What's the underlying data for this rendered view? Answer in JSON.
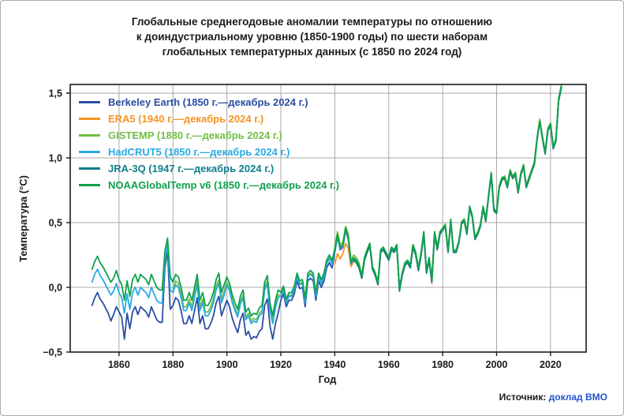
{
  "header": {
    "title_lines": [
      "Глобальные среднегодовые аномалии температуры по отношению",
      "к доиндустриальному уровню (1850-1900 годы) по шести наборам",
      "глобальных температурных данных (с 1850 по 2024 год)"
    ]
  },
  "source": {
    "prefix": "Источник: ",
    "link": "доклад ВМО"
  },
  "chart_data": {
    "type": "line",
    "title": "Глобальные среднегодовые аномалии температуры по отношению к доиндустриальному уровню (1850-1900 годы) по шести наборам глобальных температурных данных (с 1850 по 2024 год)",
    "xlabel": "Год",
    "ylabel": "Температура (°C)",
    "xlim": [
      1841.9,
      2033.2
    ],
    "ylim": [
      -0.5,
      1.567
    ],
    "xticks": [
      1860,
      1880,
      1900,
      1920,
      1940,
      1960,
      1980,
      2000,
      2020
    ],
    "xtick_labels": [
      "1860",
      "1880",
      "1900",
      "1920",
      "1940",
      "1960",
      "1980",
      "2000",
      "2020"
    ],
    "yticks": [
      -0.5,
      0.0,
      0.5,
      1.0,
      1.5
    ],
    "ytick_labels": [
      "−0,5",
      "0,0",
      "0,5",
      "1,0",
      "1,5"
    ],
    "grid": true,
    "legend_position": "upper left inside",
    "colors": {
      "grid": "#a8a8a8",
      "axis": "#1a1a1a"
    },
    "series": [
      {
        "id": "berkeley-earth",
        "name": "Berkeley Earth",
        "label": "Berkeley Earth (1850 г.—декабрь 2024 г.)",
        "color": "#2b4ea3",
        "start_year": 1850,
        "end_year": 2024,
        "values": [
          -0.14,
          -0.08,
          -0.04,
          -0.09,
          -0.12,
          -0.16,
          -0.2,
          -0.26,
          -0.21,
          -0.15,
          -0.19,
          -0.23,
          -0.4,
          -0.2,
          -0.32,
          -0.19,
          -0.15,
          -0.21,
          -0.15,
          -0.17,
          -0.19,
          -0.23,
          -0.15,
          -0.2,
          -0.25,
          -0.27,
          -0.27,
          0.15,
          0.28,
          -0.17,
          -0.14,
          -0.08,
          -0.1,
          -0.18,
          -0.28,
          -0.28,
          -0.22,
          -0.28,
          -0.18,
          -0.08,
          -0.28,
          -0.22,
          -0.32,
          -0.32,
          -0.28,
          -0.22,
          -0.12,
          -0.07,
          -0.22,
          -0.16,
          -0.1,
          -0.15,
          -0.24,
          -0.3,
          -0.35,
          -0.25,
          -0.2,
          -0.37,
          -0.34,
          -0.4,
          -0.38,
          -0.39,
          -0.34,
          -0.32,
          -0.14,
          -0.09,
          -0.3,
          -0.4,
          -0.28,
          -0.2,
          -0.1,
          -0.05,
          -0.15,
          -0.1,
          -0.1,
          -0.05,
          0.05,
          -0.01,
          0.0,
          -0.15,
          0.05,
          0.07,
          0.05,
          -0.1,
          0.05,
          0.0,
          0.05,
          0.15,
          0.19,
          0.15,
          0.27,
          0.39,
          0.29,
          0.31,
          0.44,
          0.37,
          0.17,
          0.21,
          0.19,
          0.15,
          0.07,
          0.21,
          0.27,
          0.32,
          0.14,
          0.09,
          0.02,
          0.27,
          0.29,
          0.25,
          0.21,
          0.29,
          0.27,
          0.31,
          -0.03,
          0.09,
          0.17,
          0.19,
          0.15,
          0.31,
          0.25,
          0.13,
          0.25,
          0.41,
          0.11,
          0.21,
          0.04,
          0.41,
          0.29,
          0.41,
          0.44,
          0.47,
          0.27,
          0.51,
          0.27,
          0.27,
          0.34,
          0.49,
          0.51,
          0.41,
          0.61,
          0.54,
          0.37,
          0.41,
          0.47,
          0.61,
          0.51,
          0.69,
          0.87,
          0.59,
          0.57,
          0.77,
          0.83,
          0.84,
          0.77,
          0.89,
          0.84,
          0.87,
          0.73,
          0.87,
          0.93,
          0.77,
          0.83,
          0.89,
          0.95,
          1.14,
          1.29,
          1.15,
          1.03,
          1.21,
          1.25,
          1.07,
          1.13,
          1.44,
          1.54
        ]
      },
      {
        "id": "era5",
        "name": "ERA5",
        "label": "ERA5 (1940 г.—декабрь 2024 г.)",
        "color": "#f79421",
        "start_year": 1940,
        "end_year": 2024,
        "values": [
          0.18,
          0.26,
          0.22,
          0.26,
          0.34,
          0.3,
          0.16,
          0.2,
          0.19,
          0.15,
          0.07,
          0.21,
          0.27,
          0.32,
          0.14,
          0.09,
          0.02,
          0.27,
          0.29,
          0.25,
          0.21,
          0.29,
          0.27,
          0.31,
          -0.01,
          0.09,
          0.17,
          0.19,
          0.15,
          0.31,
          0.25,
          0.13,
          0.25,
          0.41,
          0.11,
          0.21,
          0.03,
          0.41,
          0.29,
          0.41,
          0.44,
          0.47,
          0.27,
          0.51,
          0.27,
          0.27,
          0.34,
          0.49,
          0.51,
          0.41,
          0.61,
          0.54,
          0.37,
          0.41,
          0.47,
          0.61,
          0.51,
          0.69,
          0.87,
          0.59,
          0.57,
          0.77,
          0.83,
          0.84,
          0.77,
          0.89,
          0.84,
          0.87,
          0.73,
          0.87,
          0.93,
          0.77,
          0.83,
          0.89,
          0.95,
          1.14,
          1.3,
          1.15,
          1.03,
          1.21,
          1.27,
          1.07,
          1.13,
          1.45,
          1.56
        ]
      },
      {
        "id": "gistemp",
        "name": "GISTEMP",
        "label": "GISTEMP (1880 г.—декабрь 2024 г.)",
        "color": "#73be45",
        "start_year": 1880,
        "end_year": 2024,
        "values": [
          -0.01,
          0.05,
          0.03,
          -0.05,
          -0.15,
          -0.15,
          -0.09,
          -0.15,
          -0.05,
          0.05,
          -0.15,
          -0.09,
          -0.19,
          -0.19,
          -0.15,
          -0.09,
          0.01,
          0.06,
          -0.09,
          -0.03,
          0.04,
          -0.01,
          -0.1,
          -0.16,
          -0.21,
          -0.11,
          -0.06,
          -0.23,
          -0.2,
          -0.26,
          -0.24,
          -0.25,
          -0.2,
          -0.18,
          0.0,
          0.05,
          -0.16,
          -0.26,
          -0.14,
          -0.06,
          -0.06,
          -0.01,
          -0.11,
          -0.06,
          -0.06,
          -0.01,
          0.09,
          0.03,
          0.04,
          -0.11,
          0.09,
          0.11,
          0.09,
          -0.06,
          0.09,
          0.04,
          0.09,
          0.19,
          0.23,
          0.19,
          0.31,
          0.43,
          0.33,
          0.35,
          0.47,
          0.41,
          0.21,
          0.25,
          0.23,
          0.19,
          0.09,
          0.23,
          0.29,
          0.34,
          0.16,
          0.11,
          0.04,
          0.29,
          0.31,
          0.27,
          0.23,
          0.31,
          0.29,
          0.33,
          -0.01,
          0.11,
          0.19,
          0.21,
          0.17,
          0.33,
          0.27,
          0.15,
          0.27,
          0.43,
          0.13,
          0.23,
          0.06,
          0.43,
          0.31,
          0.43,
          0.46,
          0.49,
          0.29,
          0.53,
          0.29,
          0.29,
          0.36,
          0.51,
          0.53,
          0.43,
          0.63,
          0.56,
          0.39,
          0.43,
          0.49,
          0.63,
          0.53,
          0.71,
          0.89,
          0.61,
          0.59,
          0.79,
          0.85,
          0.86,
          0.79,
          0.91,
          0.86,
          0.89,
          0.75,
          0.89,
          0.95,
          0.79,
          0.85,
          0.91,
          0.97,
          1.16,
          1.3,
          1.17,
          1.05,
          1.23,
          1.27,
          1.09,
          1.15,
          1.46,
          1.56
        ]
      },
      {
        "id": "hadcrut5",
        "name": "HadCRUT5",
        "label": "HadCRUT5 (1850 г.—декабрь 2024 г.)",
        "color": "#29abe2",
        "start_year": 1850,
        "end_year": 2024,
        "values": [
          0.04,
          0.1,
          0.14,
          0.09,
          0.06,
          0.02,
          -0.02,
          -0.06,
          -0.03,
          0.03,
          -0.04,
          -0.08,
          -0.2,
          -0.05,
          -0.17,
          -0.04,
          0.0,
          -0.06,
          0.0,
          -0.02,
          -0.04,
          -0.08,
          0.0,
          -0.05,
          -0.1,
          -0.12,
          -0.12,
          0.2,
          0.33,
          -0.02,
          -0.04,
          0.02,
          0.0,
          -0.08,
          -0.18,
          -0.18,
          -0.12,
          -0.18,
          -0.08,
          0.02,
          -0.18,
          -0.12,
          -0.22,
          -0.22,
          -0.18,
          -0.12,
          -0.02,
          0.03,
          -0.12,
          -0.06,
          0.02,
          -0.03,
          -0.12,
          -0.18,
          -0.23,
          -0.13,
          -0.08,
          -0.25,
          -0.22,
          -0.28,
          -0.26,
          -0.27,
          -0.22,
          -0.2,
          -0.02,
          0.03,
          -0.18,
          -0.28,
          -0.16,
          -0.08,
          -0.07,
          -0.02,
          -0.12,
          -0.07,
          -0.07,
          -0.02,
          0.08,
          0.02,
          0.03,
          -0.12,
          0.08,
          0.1,
          0.08,
          -0.07,
          0.08,
          0.03,
          0.08,
          0.18,
          0.22,
          0.18,
          0.28,
          0.4,
          0.3,
          0.32,
          0.45,
          0.38,
          0.18,
          0.22,
          0.2,
          0.16,
          0.08,
          0.22,
          0.28,
          0.33,
          0.15,
          0.1,
          0.03,
          0.28,
          0.3,
          0.26,
          0.22,
          0.3,
          0.28,
          0.32,
          -0.02,
          0.1,
          0.18,
          0.2,
          0.16,
          0.32,
          0.26,
          0.14,
          0.26,
          0.42,
          0.12,
          0.22,
          0.05,
          0.42,
          0.3,
          0.42,
          0.45,
          0.48,
          0.28,
          0.52,
          0.28,
          0.28,
          0.35,
          0.5,
          0.52,
          0.42,
          0.62,
          0.55,
          0.38,
          0.42,
          0.48,
          0.62,
          0.52,
          0.7,
          0.88,
          0.6,
          0.58,
          0.78,
          0.84,
          0.85,
          0.78,
          0.9,
          0.85,
          0.88,
          0.74,
          0.88,
          0.94,
          0.78,
          0.84,
          0.9,
          0.96,
          1.15,
          1.28,
          1.16,
          1.04,
          1.22,
          1.26,
          1.08,
          1.14,
          1.45,
          1.55
        ]
      },
      {
        "id": "jra-3q",
        "name": "JRA-3Q",
        "label": "JRA-3Q (1947 г.—декабрь 2024 г.)",
        "color": "#0e7f8a",
        "start_year": 1947,
        "end_year": 2024,
        "values": [
          0.21,
          0.19,
          0.15,
          0.07,
          0.21,
          0.27,
          0.32,
          0.14,
          0.09,
          0.02,
          0.27,
          0.29,
          0.25,
          0.21,
          0.29,
          0.27,
          0.31,
          -0.02,
          0.09,
          0.17,
          0.19,
          0.15,
          0.31,
          0.25,
          0.13,
          0.25,
          0.41,
          0.11,
          0.21,
          0.04,
          0.41,
          0.29,
          0.41,
          0.44,
          0.47,
          0.27,
          0.51,
          0.27,
          0.27,
          0.34,
          0.49,
          0.51,
          0.41,
          0.61,
          0.54,
          0.37,
          0.41,
          0.47,
          0.61,
          0.51,
          0.69,
          0.87,
          0.59,
          0.57,
          0.77,
          0.83,
          0.84,
          0.77,
          0.89,
          0.84,
          0.87,
          0.73,
          0.87,
          0.93,
          0.77,
          0.83,
          0.89,
          0.95,
          1.14,
          1.28,
          1.15,
          1.03,
          1.21,
          1.25,
          1.07,
          1.13,
          1.44,
          1.54
        ]
      },
      {
        "id": "noaaglobaltemp-v6",
        "name": "NOAAGlobalTemp v6",
        "label": "NOAAGlobalTemp v6 (1850 г.—декабрь 2024 г.)",
        "color": "#0fa14b",
        "start_year": 1850,
        "end_year": 2024,
        "values": [
          0.14,
          0.2,
          0.24,
          0.19,
          0.16,
          0.12,
          0.08,
          0.04,
          0.07,
          0.13,
          0.06,
          0.02,
          -0.1,
          0.05,
          -0.07,
          0.06,
          0.1,
          0.04,
          0.1,
          0.08,
          0.06,
          0.02,
          0.1,
          0.05,
          0.0,
          -0.02,
          -0.02,
          0.28,
          0.38,
          0.08,
          0.04,
          0.1,
          0.08,
          0.0,
          -0.1,
          -0.1,
          -0.04,
          -0.1,
          0.0,
          0.1,
          -0.1,
          -0.04,
          -0.14,
          -0.14,
          -0.1,
          -0.04,
          0.06,
          0.11,
          -0.04,
          0.02,
          0.08,
          0.03,
          -0.06,
          -0.12,
          -0.17,
          -0.07,
          -0.02,
          -0.19,
          -0.16,
          -0.22,
          -0.2,
          -0.21,
          -0.16,
          -0.14,
          0.04,
          0.09,
          -0.12,
          -0.22,
          -0.1,
          -0.02,
          -0.04,
          0.01,
          -0.09,
          -0.04,
          -0.04,
          0.01,
          0.11,
          0.05,
          0.06,
          -0.09,
          0.11,
          0.13,
          0.11,
          -0.04,
          0.11,
          0.06,
          0.11,
          0.21,
          0.25,
          0.21,
          0.29,
          0.41,
          0.31,
          0.33,
          0.46,
          0.39,
          0.19,
          0.23,
          0.21,
          0.17,
          0.09,
          0.23,
          0.29,
          0.34,
          0.16,
          0.11,
          0.04,
          0.29,
          0.31,
          0.27,
          0.23,
          0.31,
          0.29,
          0.33,
          -0.01,
          0.11,
          0.19,
          0.21,
          0.17,
          0.33,
          0.27,
          0.15,
          0.27,
          0.43,
          0.13,
          0.23,
          0.06,
          0.43,
          0.31,
          0.43,
          0.45,
          0.48,
          0.28,
          0.52,
          0.28,
          0.28,
          0.35,
          0.5,
          0.52,
          0.42,
          0.62,
          0.55,
          0.38,
          0.42,
          0.48,
          0.62,
          0.52,
          0.7,
          0.88,
          0.6,
          0.58,
          0.78,
          0.84,
          0.85,
          0.78,
          0.9,
          0.85,
          0.88,
          0.74,
          0.88,
          0.94,
          0.78,
          0.84,
          0.9,
          0.96,
          1.15,
          1.28,
          1.16,
          1.04,
          1.22,
          1.26,
          1.08,
          1.14,
          1.45,
          1.55
        ]
      }
    ]
  }
}
